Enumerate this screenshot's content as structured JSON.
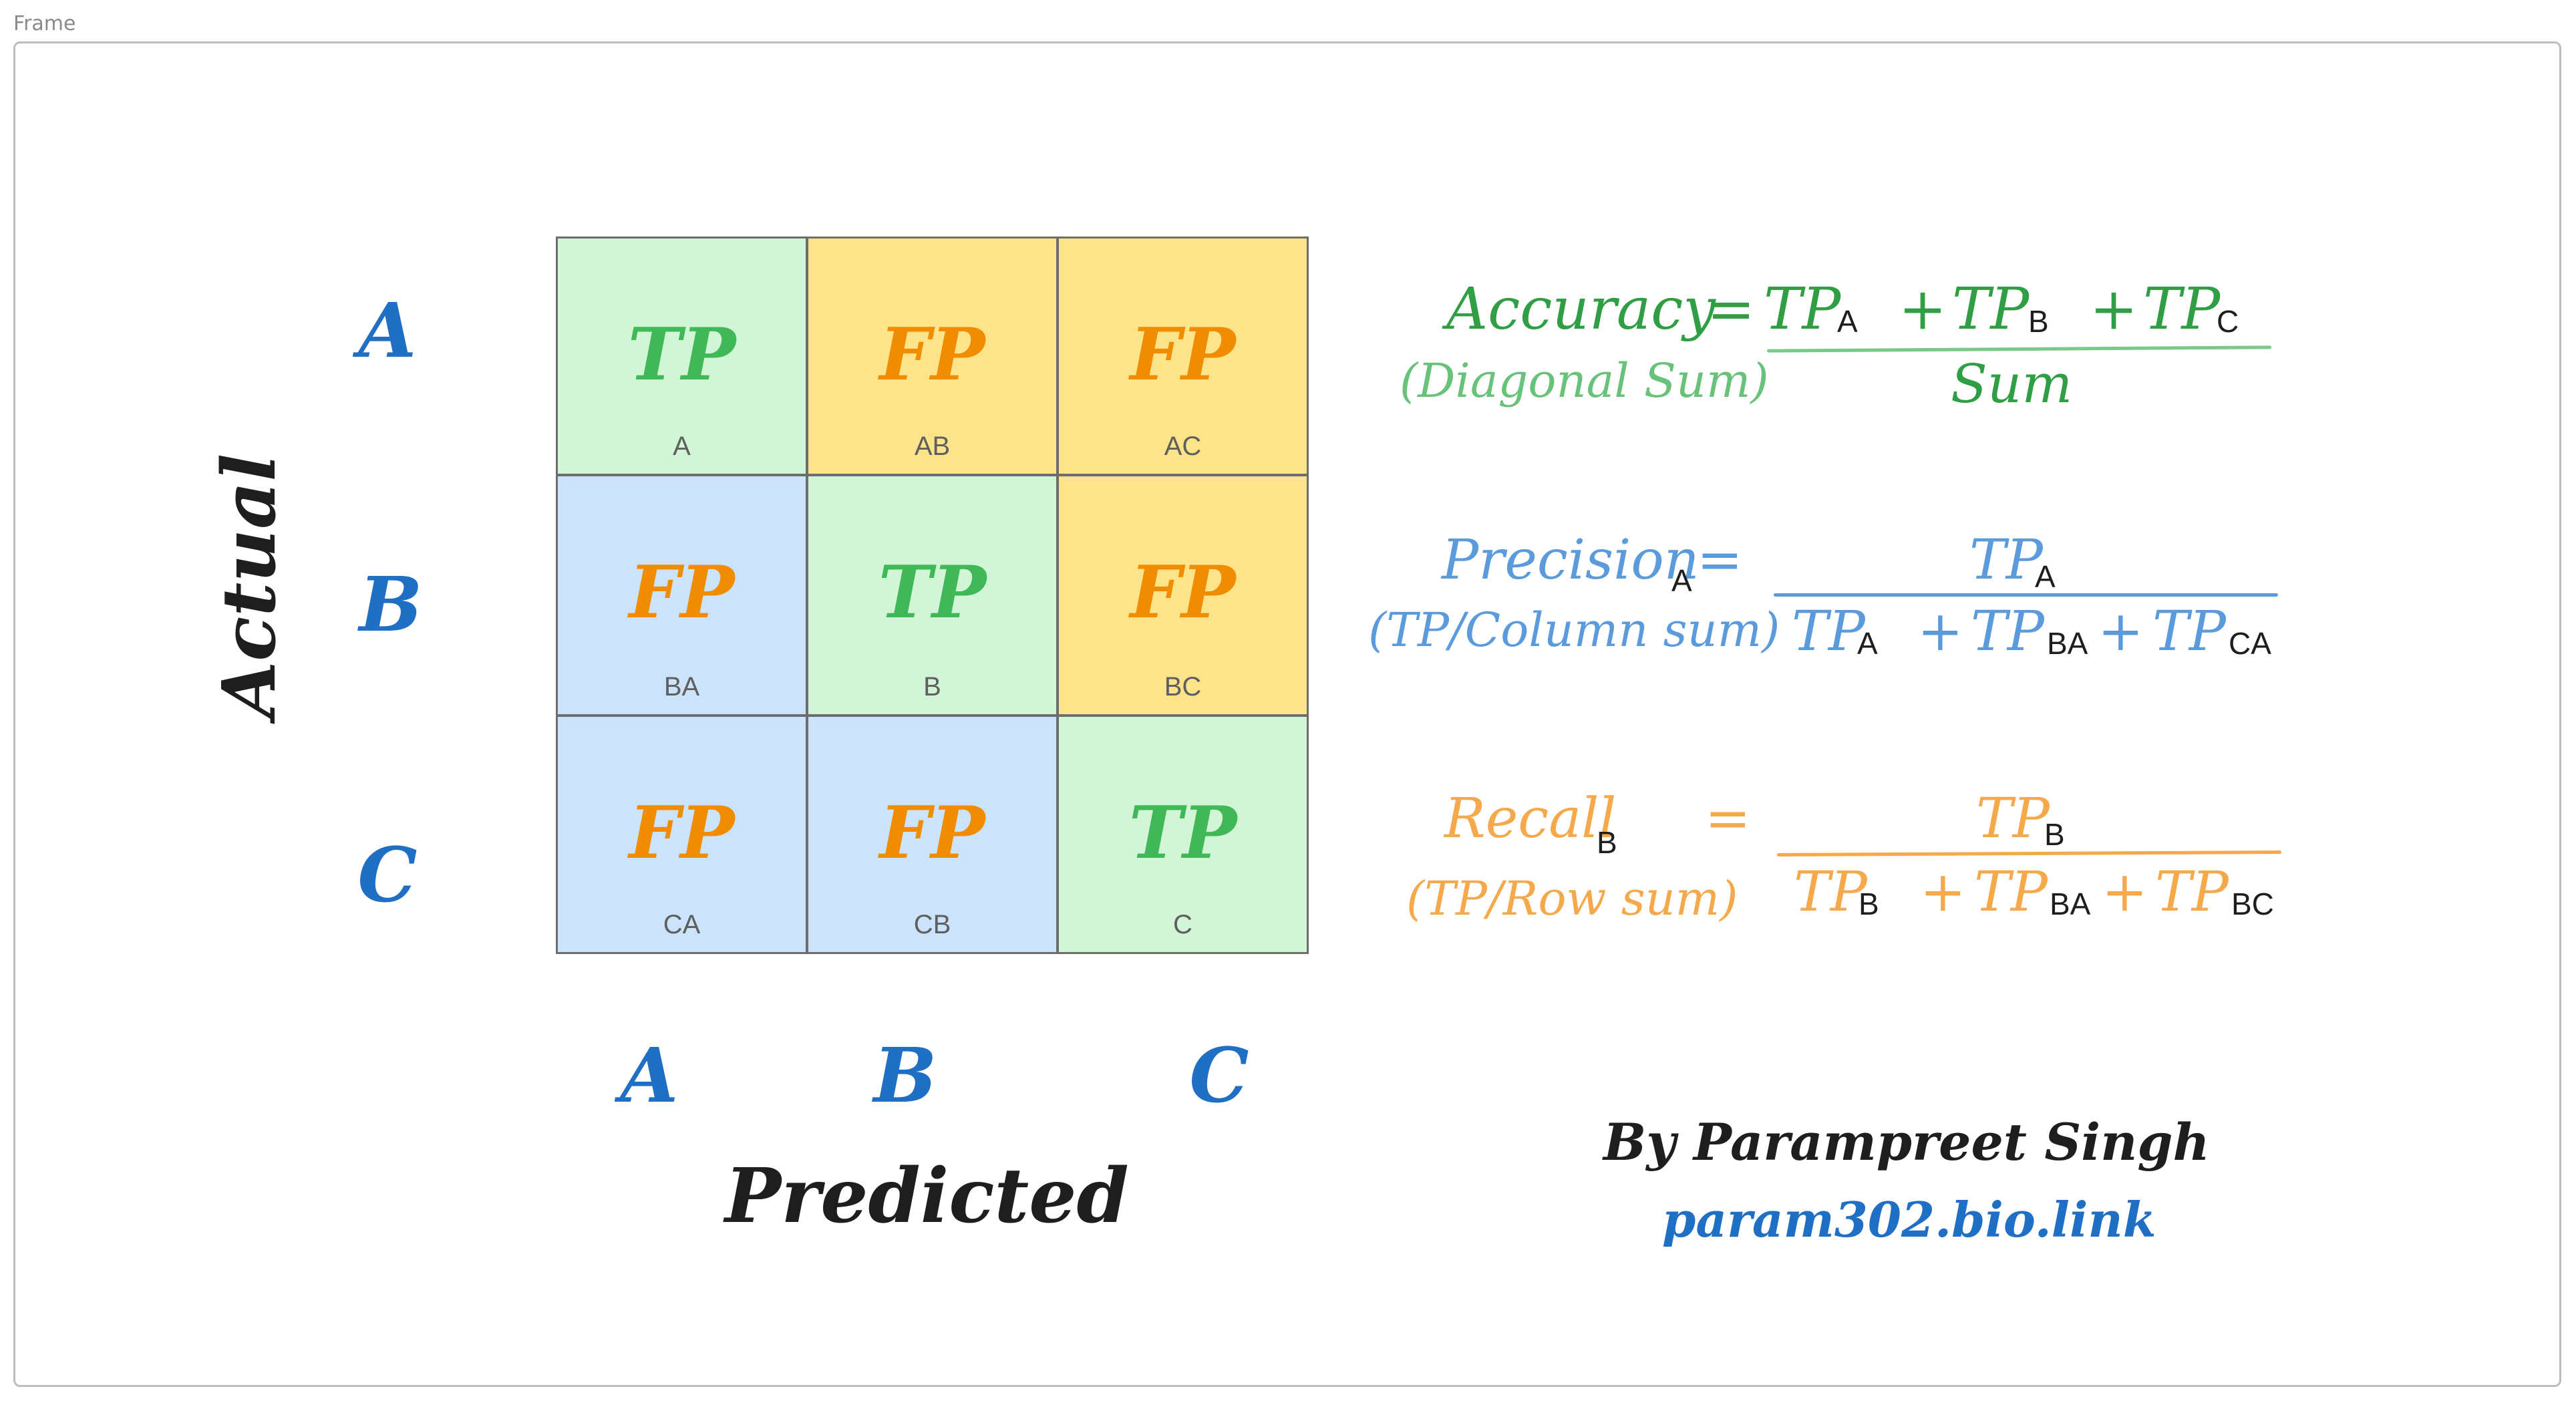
{
  "frame": {
    "label": "Frame"
  },
  "axes": {
    "actual_title": "Actual",
    "predicted_title": "Predicted",
    "rows": [
      "A",
      "B",
      "C"
    ],
    "cols": [
      "A",
      "B",
      "C"
    ]
  },
  "matrix": {
    "cells": [
      {
        "kind": "TP",
        "label": "A",
        "color": "#d3f5d7"
      },
      {
        "kind": "FP",
        "label": "AB",
        "color": "#fde38a"
      },
      {
        "kind": "FP",
        "label": "AC",
        "color": "#fde38a"
      },
      {
        "kind": "FP",
        "label": "BA",
        "color": "#cbe4fb"
      },
      {
        "kind": "TP",
        "label": "B",
        "color": "#d3f5d7"
      },
      {
        "kind": "FP",
        "label": "BC",
        "color": "#fde38a"
      },
      {
        "kind": "FP",
        "label": "CA",
        "color": "#cbe4fb"
      },
      {
        "kind": "FP",
        "label": "CB",
        "color": "#cbe4fb"
      },
      {
        "kind": "TP",
        "label": "C",
        "color": "#d3f5d7"
      }
    ]
  },
  "formulas": {
    "accuracy": {
      "name": "Accuracy",
      "eq": "=",
      "note": "(Diagonal Sum)",
      "tp": "TP",
      "plus": "+",
      "subs": [
        "A",
        "B",
        "C"
      ],
      "denominator": "Sum",
      "color": "#2f9e44"
    },
    "precision": {
      "name": "Precision",
      "name_sub": "A",
      "eq": "=",
      "note": "(TP/Column sum)",
      "tp": "TP",
      "plus": "+",
      "num_sub": "A",
      "den_subs": [
        "A",
        "BA",
        "CA"
      ],
      "color": "#5b9bdc"
    },
    "recall": {
      "name": "Recall",
      "name_sub": "B",
      "eq": "=",
      "note": "(TP/Row sum)",
      "tp": "TP",
      "plus": "+",
      "num_sub": "B",
      "den_subs": [
        "B",
        "BA",
        "BC"
      ],
      "color": "#f5a94a"
    }
  },
  "credit": {
    "author": "By Parampreet Singh",
    "link": "param302.bio.link"
  },
  "colors": {
    "axis_letters": "#1f6fc4",
    "tp_text": "#40b857",
    "fp_text": "#f08c00"
  }
}
